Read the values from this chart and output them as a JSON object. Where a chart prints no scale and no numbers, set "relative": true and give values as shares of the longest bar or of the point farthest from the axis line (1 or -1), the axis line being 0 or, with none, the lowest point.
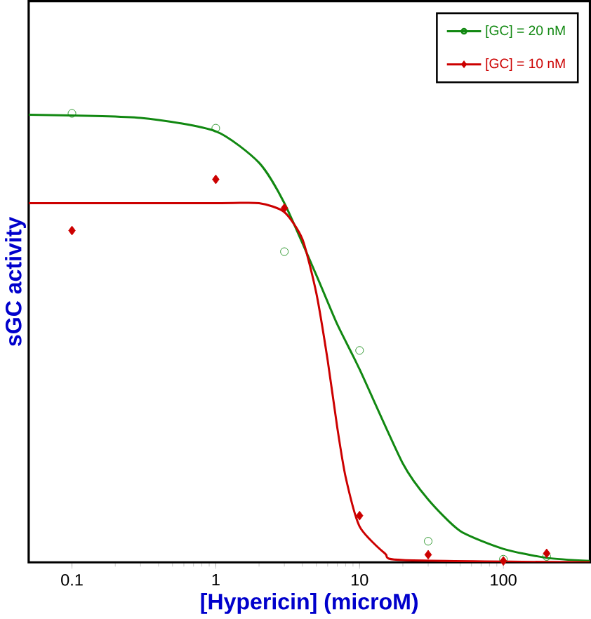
{
  "chart_data": {
    "type": "scatter",
    "xlabel": "[Hypericin] (microM)",
    "ylabel": "sGC activity",
    "log": "x",
    "relative": true,
    "legend": "top right",
    "grid": false,
    "xlim": [
      0.05,
      400
    ],
    "xticks": [
      0.1,
      1,
      10,
      100
    ],
    "series": [
      {
        "name": "[GC] = 20 nM",
        "marker": "circle",
        "color": "#118811",
        "x": [
          0.1,
          1,
          3,
          10,
          30,
          100,
          200
        ],
        "values": [
          1.0,
          0.967,
          0.692,
          0.472,
          0.047,
          0.007,
          0.013
        ]
      },
      {
        "name": "[GC] = 10 nM",
        "marker": "diamond",
        "color": "#cc0000",
        "x": [
          0.1,
          1,
          3,
          10,
          30,
          100,
          200
        ],
        "values": [
          0.739,
          0.853,
          0.789,
          0.104,
          0.017,
          0.003,
          0.02
        ]
      },
      {
        "type": "line",
        "marker": "none",
        "color": "#118811",
        "x": [
          0.05,
          0.3,
          1,
          2,
          3,
          5,
          7,
          10,
          20,
          30,
          50,
          100,
          200,
          400
        ],
        "values": [
          0.997,
          0.99,
          0.96,
          0.89,
          0.8,
          0.64,
          0.53,
          0.43,
          0.22,
          0.14,
          0.07,
          0.03,
          0.01,
          0.003
        ]
      },
      {
        "type": "line",
        "marker": "none",
        "color": "#cc0000",
        "x": [
          0.05,
          1,
          2,
          3,
          4,
          5,
          6,
          7,
          8,
          10,
          15,
          20,
          400
        ],
        "values": [
          0.8,
          0.8,
          0.8,
          0.78,
          0.72,
          0.6,
          0.45,
          0.3,
          0.19,
          0.08,
          0.02,
          0.005,
          0.0
        ]
      }
    ]
  }
}
